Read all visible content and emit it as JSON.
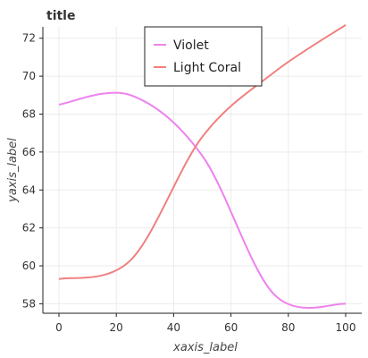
{
  "chart_data": {
    "type": "line",
    "title": "title",
    "xlabel": "xaxis_label",
    "ylabel": "yaxis_label",
    "xlim": [
      0,
      100
    ],
    "ylim": [
      57.5,
      72.6
    ],
    "xticks": [
      0,
      20,
      40,
      60,
      80,
      100
    ],
    "yticks": [
      58,
      60,
      62,
      64,
      66,
      68,
      70,
      72
    ],
    "grid": true,
    "legend": "top-center",
    "series": [
      {
        "name": "Violet",
        "color": "#ee82ee",
        "x": [
          0,
          25,
          50,
          75,
          100
        ],
        "y": [
          68.5,
          69.0,
          65.8,
          58.5,
          58.0
        ]
      },
      {
        "name": "Light Coral",
        "color": "#f08080",
        "x": [
          0,
          25,
          50,
          75,
          100
        ],
        "y": [
          59.3,
          60.3,
          66.8,
          70.2,
          72.7
        ]
      }
    ]
  }
}
